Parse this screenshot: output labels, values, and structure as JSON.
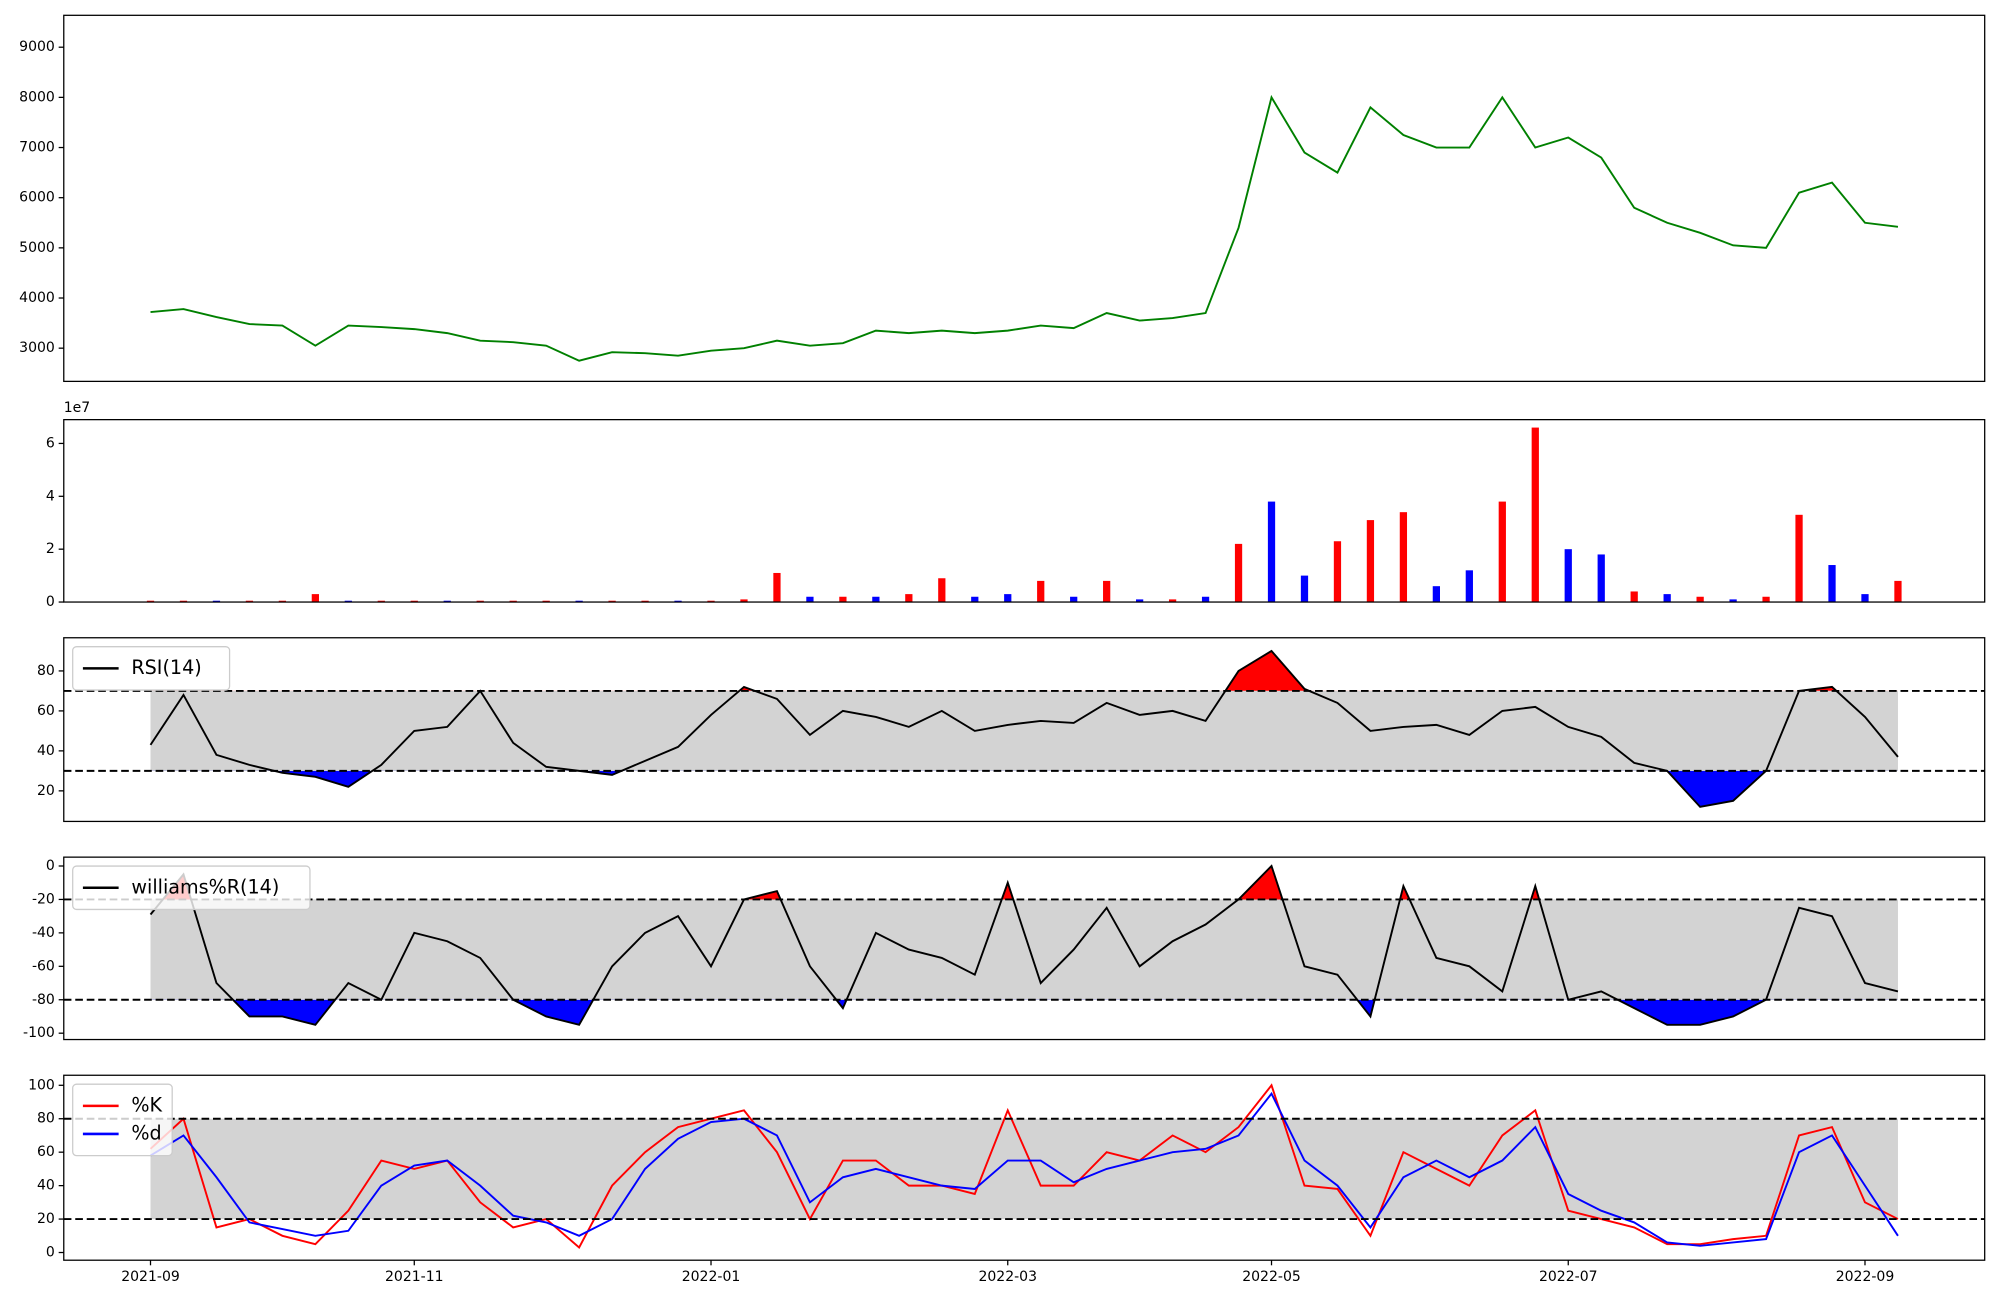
{
  "chart_data": [
    {
      "type": "line",
      "color": "green",
      "values": [
        3720,
        3780,
        3620,
        3480,
        3450,
        3050,
        3450,
        3420,
        3380,
        3300,
        3150,
        3120,
        3050,
        2750,
        2920,
        2900,
        2850,
        2950,
        3000,
        3150,
        3050,
        3100,
        3350,
        3300,
        3350,
        3300,
        3350,
        3450,
        3400,
        3700,
        3550,
        3600,
        3700,
        5400,
        8000,
        6900,
        6500,
        7800,
        7250,
        7000,
        7000,
        8000,
        7000,
        7200,
        6800,
        5800,
        5500,
        5300,
        5050,
        5000,
        6100,
        6300,
        5500,
        5420
      ],
      "ylim": [
        2338,
        9636
      ],
      "yticks": [
        3000,
        4000,
        5000,
        6000,
        7000,
        8000,
        9000
      ]
    },
    {
      "type": "bar",
      "offset_label": "1e7",
      "values": [
        0.05,
        0.05,
        0.05,
        0.05,
        0.05,
        0.3,
        0.05,
        0.05,
        0.05,
        0.05,
        0.05,
        0.05,
        0.05,
        0.05,
        0.05,
        0.05,
        0.05,
        0.05,
        0.1,
        1.1,
        0.2,
        0.2,
        0.2,
        0.3,
        0.9,
        0.2,
        0.3,
        0.8,
        0.2,
        0.8,
        0.1,
        0.1,
        0.2,
        2.2,
        3.8,
        1.0,
        2.3,
        3.1,
        3.4,
        0.6,
        1.2,
        3.8,
        6.6,
        2.0,
        1.8,
        0.4,
        0.3,
        0.2,
        0.1,
        0.2,
        3.3,
        1.4,
        0.3,
        0.8
      ],
      "colors": [
        "red",
        "red",
        "blue",
        "red",
        "red",
        "red",
        "blue",
        "red",
        "red",
        "blue",
        "red",
        "red",
        "red",
        "blue",
        "red",
        "red",
        "blue",
        "red",
        "red",
        "red",
        "blue",
        "red",
        "blue",
        "red",
        "red",
        "blue",
        "blue",
        "red",
        "blue",
        "red",
        "blue",
        "red",
        "blue",
        "red",
        "blue",
        "blue",
        "red",
        "red",
        "red",
        "blue",
        "blue",
        "red",
        "red",
        "blue",
        "blue",
        "red",
        "blue",
        "red",
        "blue",
        "red",
        "red",
        "blue",
        "blue",
        "red"
      ],
      "ylim": [
        0,
        6.9
      ],
      "yticks": [
        0,
        2,
        4,
        6
      ]
    },
    {
      "type": "line",
      "legend": "upper left",
      "series": [
        {
          "name": "RSI(14)",
          "color": "black",
          "values": [
            43,
            68,
            38,
            33,
            29,
            27,
            22,
            33,
            50,
            52,
            70,
            44,
            32,
            30,
            28,
            35,
            42,
            58,
            72,
            66,
            48,
            60,
            57,
            52,
            60,
            50,
            53,
            55,
            54,
            64,
            58,
            60,
            55,
            80,
            90,
            71,
            64,
            50,
            52,
            53,
            48,
            60,
            62,
            52,
            47,
            34,
            30,
            12,
            15,
            30,
            70,
            72,
            57,
            37
          ]
        }
      ],
      "band": {
        "lower": 30,
        "upper": 70,
        "color": "lightgray",
        "fill_below": "blue",
        "fill_above": "red"
      },
      "ylim": [
        4.7,
        96.6
      ],
      "yticks": [
        20,
        40,
        60,
        80
      ]
    },
    {
      "type": "line",
      "legend": "upper left",
      "series": [
        {
          "name": "williams%R(14)",
          "color": "black",
          "values": [
            -29,
            -5,
            -70,
            -90,
            -90,
            -95,
            -70,
            -80,
            -40,
            -45,
            -55,
            -80,
            -90,
            -95,
            -60,
            -40,
            -30,
            -60,
            -20,
            -15,
            -60,
            -85,
            -40,
            -50,
            -55,
            -65,
            -10,
            -70,
            -50,
            -25,
            -60,
            -45,
            -35,
            -20,
            0,
            -60,
            -65,
            -90,
            -12,
            -55,
            -60,
            -75,
            -12,
            -80,
            -75,
            -85,
            -95,
            -95,
            -90,
            -80,
            -25,
            -30,
            -70,
            -75
          ]
        }
      ],
      "band": {
        "lower": -80,
        "upper": -20,
        "color": "lightgray",
        "fill_below": "blue",
        "fill_above": "red"
      },
      "ylim": [
        -103.8,
        5.3
      ],
      "yticks": [
        -100,
        -80,
        -60,
        -40,
        -20,
        0
      ]
    },
    {
      "type": "line",
      "legend": "upper left",
      "categories": [
        "2021-09",
        null,
        null,
        null,
        null,
        null,
        null,
        null,
        "2021-11",
        null,
        null,
        null,
        null,
        null,
        null,
        null,
        null,
        "2022-01",
        null,
        null,
        null,
        null,
        null,
        null,
        null,
        null,
        "2022-03",
        null,
        null,
        null,
        null,
        null,
        null,
        null,
        "2022-05",
        null,
        null,
        null,
        null,
        null,
        null,
        null,
        null,
        "2022-07",
        null,
        null,
        null,
        null,
        null,
        null,
        null,
        null,
        "2022-09",
        null
      ],
      "series": [
        {
          "name": "%K",
          "color": "red",
          "values": [
            62,
            80,
            15,
            20,
            10,
            5,
            25,
            55,
            50,
            55,
            30,
            15,
            20,
            3,
            40,
            60,
            75,
            80,
            85,
            60,
            20,
            55,
            55,
            40,
            40,
            35,
            85,
            40,
            40,
            60,
            55,
            70,
            60,
            75,
            100,
            40,
            38,
            10,
            60,
            50,
            40,
            70,
            85,
            25,
            20,
            15,
            5,
            5,
            8,
            10,
            70,
            75,
            30,
            20
          ]
        },
        {
          "name": "%d",
          "color": "blue",
          "values": [
            58,
            70,
            45,
            18,
            14,
            10,
            13,
            40,
            52,
            55,
            40,
            22,
            18,
            10,
            20,
            50,
            68,
            78,
            80,
            70,
            30,
            45,
            50,
            45,
            40,
            38,
            55,
            55,
            42,
            50,
            55,
            60,
            62,
            70,
            95,
            55,
            40,
            15,
            45,
            55,
            45,
            55,
            75,
            35,
            25,
            18,
            6,
            4,
            6,
            8,
            60,
            70,
            40,
            10
          ]
        }
      ],
      "band": {
        "lower": 20,
        "upper": 80,
        "color": "lightgray"
      },
      "ylim": [
        -4.6,
        106
      ],
      "yticks": [
        0,
        20,
        40,
        60,
        80,
        100
      ]
    }
  ]
}
